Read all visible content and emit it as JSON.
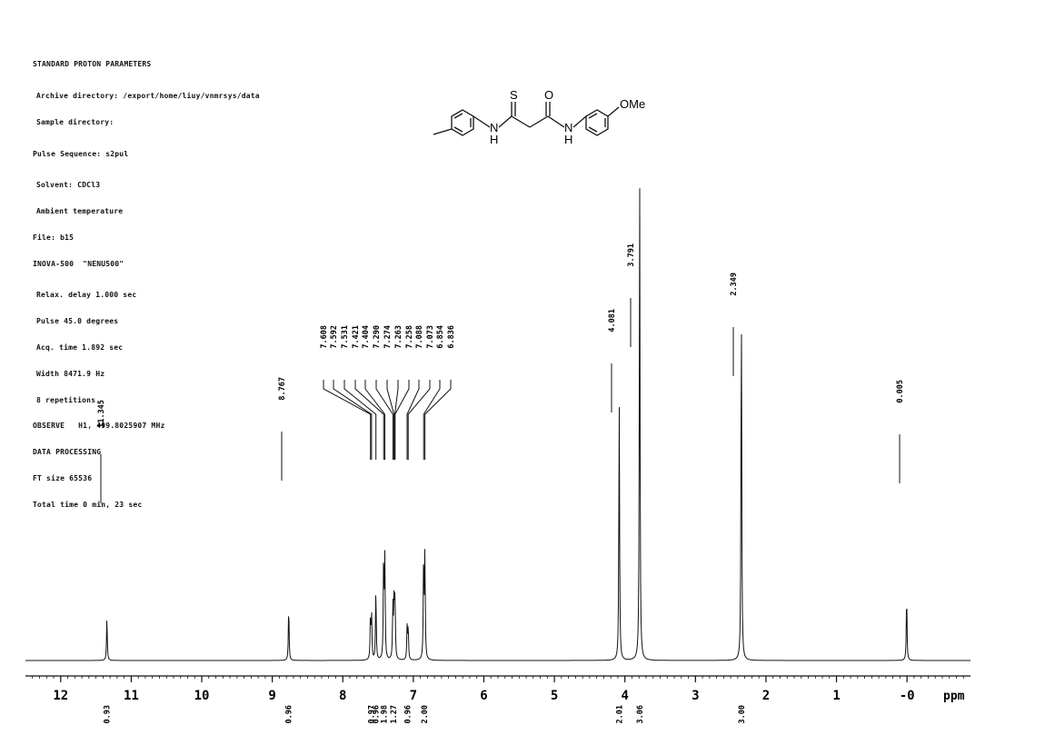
{
  "parameters": [
    "STANDARD PROTON PARAMETERS",
    "Archive directory: /export/home/liuy/vnmrsys/data",
    "Sample directory:",
    "Pulse Sequence: s2pul",
    "Solvent: CDCl3",
    "Ambient temperature",
    "File: b15",
    "INOVA-500  \"NENU500\"",
    "Relax. delay 1.000 sec",
    "Pulse 45.0 degrees",
    "Acq. time 1.892 sec",
    "Width 8471.9 Hz",
    "8 repetitions",
    "OBSERVE   H1, 499.8025907 MHz",
    "DATA PROCESSING",
    "FT size 65536",
    "Total time 0 min, 23 sec"
  ],
  "structure": {
    "labels": {
      "S": "S",
      "O": "O",
      "OMe": "OMe",
      "NH1": "N",
      "H1": "H",
      "NH2": "N",
      "H2": "H"
    }
  },
  "chart_data": {
    "type": "line",
    "title": "",
    "xlabel": "ppm",
    "ylabel": "",
    "xlim": [
      12.5,
      -0.9
    ],
    "x_reversed": true,
    "ticks": [
      12,
      11,
      10,
      9,
      8,
      7,
      6,
      5,
      4,
      3,
      2,
      1,
      0
    ],
    "tick_labels": [
      "12",
      "11",
      "10",
      "9",
      "8",
      "7",
      "6",
      "5",
      "4",
      "3",
      "2",
      "1",
      "-0"
    ],
    "grid": false,
    "legend": "none",
    "peaks": [
      {
        "ppm": 11.345,
        "height": 0.08
      },
      {
        "ppm": 8.767,
        "height": 0.1
      },
      {
        "ppm": 7.608,
        "height": 0.08
      },
      {
        "ppm": 7.592,
        "height": 0.08
      },
      {
        "ppm": 7.531,
        "height": 0.13
      },
      {
        "ppm": 7.421,
        "height": 0.19
      },
      {
        "ppm": 7.404,
        "height": 0.18
      },
      {
        "ppm": 7.29,
        "height": 0.1
      },
      {
        "ppm": 7.274,
        "height": 0.1
      },
      {
        "ppm": 7.263,
        "height": 0.06
      },
      {
        "ppm": 7.258,
        "height": 0.06
      },
      {
        "ppm": 7.088,
        "height": 0.06
      },
      {
        "ppm": 7.073,
        "height": 0.06
      },
      {
        "ppm": 6.854,
        "height": 0.19
      },
      {
        "ppm": 6.836,
        "height": 0.19
      },
      {
        "ppm": 4.081,
        "height": 0.48
      },
      {
        "ppm": 3.791,
        "height": 0.89
      },
      {
        "ppm": 2.349,
        "height": 0.67
      },
      {
        "ppm": 0.005,
        "height": 0.12
      }
    ],
    "peak_labels": [
      "11.345",
      "8.767",
      "7.608",
      "7.592",
      "7.531",
      "7.421",
      "7.404",
      "7.290",
      "7.274",
      "7.263",
      "7.258",
      "7.088",
      "7.073",
      "6.854",
      "6.836",
      "4.081",
      "3.791",
      "2.349",
      "0.005"
    ],
    "integrals": [
      {
        "ppm": 11.345,
        "label": "0.93"
      },
      {
        "ppm": 8.767,
        "label": "0.96"
      },
      {
        "ppm": 7.6,
        "label": "0.97"
      },
      {
        "ppm": 7.53,
        "label": "0.96"
      },
      {
        "ppm": 7.42,
        "label": "1.98"
      },
      {
        "ppm": 7.28,
        "label": "1.27"
      },
      {
        "ppm": 7.08,
        "label": "0.96"
      },
      {
        "ppm": 6.845,
        "label": "2.00"
      },
      {
        "ppm": 4.081,
        "label": "2.01"
      },
      {
        "ppm": 3.791,
        "label": "3.06"
      },
      {
        "ppm": 2.349,
        "label": "3.00"
      }
    ]
  }
}
